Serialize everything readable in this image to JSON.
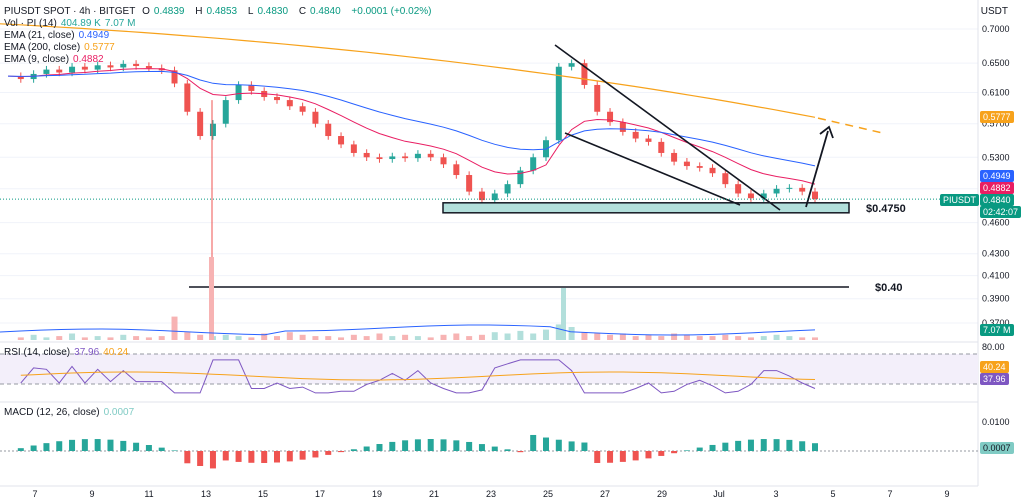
{
  "header": {
    "symbol_line": "PIUSDT SPOT · 4h · BITGET",
    "o_label": "O",
    "o": "0.4839",
    "h_label": "H",
    "h": "0.4853",
    "l_label": "L",
    "l": "0.4830",
    "c_label": "C",
    "c": "0.4840",
    "change": "+0.0001 (+0.02%)",
    "currency": "USDT"
  },
  "legend": {
    "vol_label": "Vol · PI (14)",
    "vol_a": "404.89 K",
    "vol_b": "7.07 M",
    "ema21_label": "EMA (21, close)",
    "ema21": "0.4949",
    "ema200_label": "EMA (200, close)",
    "ema200": "0.5777",
    "ema9_label": "EMA (9, close)",
    "ema9": "0.4882",
    "rsi_label": "RSI (14, close)",
    "rsi_a": "37.96",
    "rsi_b": "40.24",
    "macd_label": "MACD (12, 26, close)",
    "macd": "0.0007"
  },
  "annotations": {
    "support_label": "$0.4750",
    "target_label": "$0.40"
  },
  "tags": {
    "ema200": "0.5777",
    "ema21": "0.4949",
    "ema9": "0.4882",
    "symbol": "PIUSDT",
    "last_price": "0.4840",
    "countdown": "02:42:07",
    "volume": "7.07 M",
    "rsi_upper": "80.00",
    "rsi_ma": "40.24",
    "rsi": "37.96",
    "macd_tick": "0.0100",
    "macd_value": "0.0007"
  },
  "colors": {
    "up": "#26a69a",
    "down": "#ef5350",
    "ema21": "#2962ff",
    "ema200": "#f7a21b",
    "ema9": "#e91e63",
    "rsi": "#7e57c2",
    "support_box": "#b2dfdb"
  },
  "chart_data": {
    "type": "candlestick",
    "price_axis": {
      "ticks": [
        "0.7000",
        "0.6500",
        "0.6100",
        "0.5700",
        "0.5300",
        "0.4950",
        "0.4600",
        "0.4300",
        "0.4100",
        "0.3900",
        "0.3700"
      ],
      "log_scale": true
    },
    "x_ticks": [
      "7",
      "9",
      "11",
      "13",
      "15",
      "17",
      "19",
      "21",
      "23",
      "25",
      "27",
      "29",
      "Jul",
      "3",
      "5",
      "7",
      "9"
    ],
    "support_level": 0.475,
    "target_level": 0.4,
    "close_path": [
      0.632,
      0.628,
      0.635,
      0.641,
      0.637,
      0.645,
      0.641,
      0.647,
      0.644,
      0.649,
      0.646,
      0.643,
      0.64,
      0.622,
      0.585,
      0.555,
      0.57,
      0.6,
      0.62,
      0.612,
      0.604,
      0.6,
      0.592,
      0.585,
      0.57,
      0.555,
      0.545,
      0.535,
      0.53,
      0.528,
      0.531,
      0.529,
      0.534,
      0.53,
      0.522,
      0.51,
      0.492,
      0.483,
      0.49,
      0.5,
      0.515,
      0.53,
      0.55,
      0.645,
      0.65,
      0.62,
      0.585,
      0.572,
      0.56,
      0.552,
      0.548,
      0.535,
      0.525,
      0.52,
      0.518,
      0.512,
      0.5,
      0.49,
      0.485,
      0.49,
      0.495,
      0.496,
      0.492,
      0.484
    ],
    "rsi": {
      "upper": 80,
      "current": 37.96,
      "ma": 40.24
    },
    "macd": {
      "current": 0.0007,
      "tick": 0.01
    }
  }
}
